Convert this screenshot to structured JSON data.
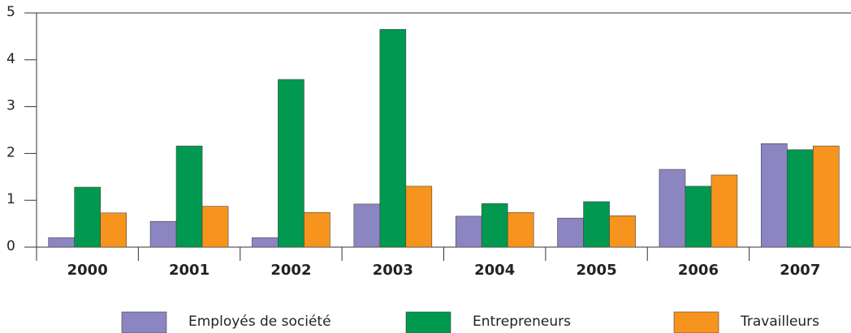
{
  "chart_data": {
    "type": "bar",
    "categories": [
      "2000",
      "2001",
      "2002",
      "2003",
      "2004",
      "2005",
      "2006",
      "2007"
    ],
    "series": [
      {
        "name": "Employés de société",
        "color": "#8b85c1",
        "values": [
          0.2,
          0.55,
          0.2,
          0.92,
          0.66,
          0.62,
          1.66,
          2.21
        ]
      },
      {
        "name": "Entrepreneurs",
        "color": "#00994f",
        "values": [
          1.28,
          2.16,
          3.58,
          4.65,
          0.93,
          0.97,
          1.3,
          2.08
        ]
      },
      {
        "name": "Travailleurs",
        "color": "#f7941d",
        "values": [
          0.73,
          0.87,
          0.74,
          1.3,
          0.74,
          0.67,
          1.54,
          2.16
        ]
      }
    ],
    "ylim": [
      0,
      5
    ],
    "yticks": [
      0,
      1,
      2,
      3,
      4,
      5
    ],
    "grid": false,
    "legend": "bottom"
  }
}
